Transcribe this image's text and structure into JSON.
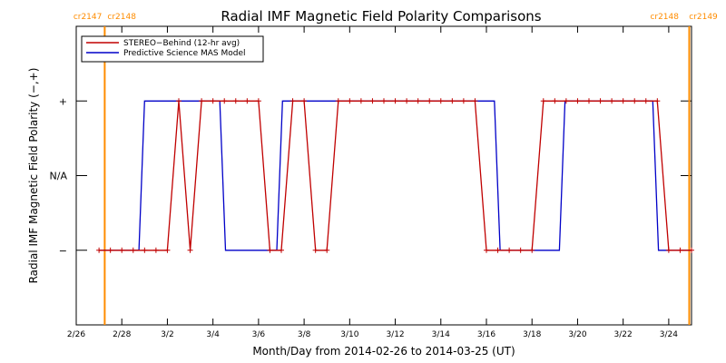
{
  "chart_data": {
    "type": "line",
    "title": "Radial IMF Magnetic Field Polarity Comparisons",
    "xlabel": "Month/Day from 2014-02-26 to 2014-03-25 (UT)",
    "ylabel": "Radial IMF Magnetic Field Polarity (−,+)",
    "xlim": [
      0,
      27
    ],
    "ylim": [
      -2,
      2
    ],
    "x_tick_labels": [
      {
        "x": 0,
        "label": "2/26"
      },
      {
        "x": 2,
        "label": "2/28"
      },
      {
        "x": 4,
        "label": "3/2"
      },
      {
        "x": 6,
        "label": "3/4"
      },
      {
        "x": 8,
        "label": "3/6"
      },
      {
        "x": 10,
        "label": "3/8"
      },
      {
        "x": 12,
        "label": "3/10"
      },
      {
        "x": 14,
        "label": "3/12"
      },
      {
        "x": 16,
        "label": "3/14"
      },
      {
        "x": 18,
        "label": "3/16"
      },
      {
        "x": 20,
        "label": "3/18"
      },
      {
        "x": 22,
        "label": "3/20"
      },
      {
        "x": 24,
        "label": "3/22"
      },
      {
        "x": 26,
        "label": "3/24"
      }
    ],
    "y_tick_labels": [
      {
        "y": 1,
        "label": "+"
      },
      {
        "y": 0,
        "label": "N/A"
      },
      {
        "y": -1,
        "label": "−"
      }
    ],
    "legend_placement": "top-left",
    "colors": {
      "stereo": "#c00000",
      "mas": "#0000c8",
      "cr_line": "#ff8c00"
    },
    "carrington_markers": [
      {
        "x": 1.25,
        "left_label": "cr2147",
        "right_label": "cr2148"
      },
      {
        "x": 26.9,
        "left_label": "cr2148",
        "right_label": "cr2149"
      }
    ],
    "series": [
      {
        "name": "STEREO−Behind (12-hr avg)",
        "x": [
          1.0,
          1.5,
          2.0,
          2.5,
          3.0,
          3.5,
          4.0,
          4.5,
          5.0,
          5.5,
          6.0,
          6.5,
          7.0,
          7.5,
          8.0,
          8.5,
          9.0,
          9.5,
          10.0,
          10.5,
          11.0,
          11.5,
          12.0,
          12.5,
          13.0,
          13.5,
          14.0,
          14.5,
          15.0,
          15.5,
          16.0,
          16.5,
          17.0,
          17.5,
          18.0,
          18.5,
          19.0,
          19.5,
          20.0,
          20.5,
          21.0,
          21.5,
          22.0,
          22.5,
          23.0,
          23.5,
          24.0,
          24.5,
          25.0,
          25.5,
          26.0,
          26.5,
          27.0
        ],
        "values": [
          -1,
          -1,
          -1,
          -1,
          -1,
          -1,
          -1,
          1,
          -1,
          1,
          1,
          1,
          1,
          1,
          1,
          -1,
          -1,
          1,
          1,
          -1,
          -1,
          1,
          1,
          1,
          1,
          1,
          1,
          1,
          1,
          1,
          1,
          1,
          1,
          1,
          -1,
          -1,
          -1,
          -1,
          -1,
          1,
          1,
          1,
          1,
          1,
          1,
          1,
          1,
          1,
          1,
          1,
          -1,
          -1,
          -1
        ]
      },
      {
        "name": "Predictive Science MAS Model",
        "x": [
          1.0,
          2.75,
          3.0,
          4.0,
          6.3,
          6.55,
          8.0,
          8.8,
          9.05,
          11.0,
          11.85,
          12.1,
          14.0,
          16.0,
          18.0,
          18.35,
          18.6,
          20.0,
          21.2,
          21.45,
          24.0,
          25.3,
          25.55,
          27.0
        ],
        "values": [
          -1,
          -1,
          1,
          1,
          1,
          -1,
          -1,
          -1,
          1,
          1,
          1,
          1,
          1,
          1,
          1,
          1,
          -1,
          -1,
          -1,
          1,
          1,
          1,
          -1,
          -1
        ]
      }
    ]
  }
}
